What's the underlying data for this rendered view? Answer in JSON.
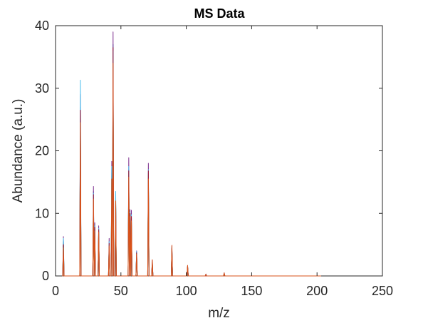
{
  "chart_data": {
    "type": "line",
    "title": "MS Data",
    "xlabel": "m/z",
    "ylabel": "Abundance (a.u.)",
    "xlim": [
      0,
      250
    ],
    "ylim": [
      0,
      40
    ],
    "xticks": [
      0,
      50,
      100,
      150,
      200,
      250
    ],
    "yticks": [
      0,
      10,
      20,
      30,
      40
    ],
    "grid": false,
    "x_extent": [
      5,
      203
    ],
    "series": [
      {
        "color": "#0072BD",
        "peaks": [
          [
            6,
            5.8
          ],
          [
            19,
            27
          ],
          [
            29,
            13.5
          ],
          [
            30,
            8
          ],
          [
            33,
            7.5
          ],
          [
            41,
            5
          ],
          [
            43,
            17
          ],
          [
            44,
            37
          ],
          [
            46,
            12
          ],
          [
            56,
            17
          ],
          [
            57,
            10
          ],
          [
            58,
            9
          ],
          [
            62,
            3.8
          ],
          [
            71,
            16.5
          ],
          [
            74,
            2.2
          ],
          [
            89,
            4.5
          ],
          [
            101,
            1.5
          ],
          [
            115,
            0.3
          ],
          [
            129,
            0.4
          ]
        ]
      },
      {
        "color": "#EDB120",
        "peaks": [
          [
            6,
            5.2
          ],
          [
            19,
            26
          ],
          [
            29,
            12.5
          ],
          [
            30,
            7
          ],
          [
            33,
            7
          ],
          [
            41,
            4.5
          ],
          [
            43,
            16.5
          ],
          [
            44,
            35
          ],
          [
            46,
            13
          ],
          [
            56,
            16
          ],
          [
            57,
            9.5
          ],
          [
            58,
            9
          ],
          [
            62,
            3.5
          ],
          [
            71,
            16
          ],
          [
            74,
            2
          ],
          [
            89,
            4
          ],
          [
            101,
            1.4
          ],
          [
            129,
            0.3
          ]
        ]
      },
      {
        "color": "#7E2F8E",
        "peaks": [
          [
            6,
            6.3
          ],
          [
            19,
            29
          ],
          [
            29,
            14.3
          ],
          [
            30,
            8.5
          ],
          [
            33,
            8
          ],
          [
            41,
            6
          ],
          [
            43,
            18.3
          ],
          [
            44,
            39
          ],
          [
            46,
            12
          ],
          [
            56,
            18.9
          ],
          [
            57,
            10.6
          ],
          [
            58,
            10.5
          ],
          [
            62,
            4
          ],
          [
            71,
            18
          ],
          [
            74,
            2.5
          ],
          [
            89,
            4.8
          ],
          [
            101,
            1.6
          ],
          [
            115,
            0.3
          ],
          [
            129,
            0.5
          ]
        ]
      },
      {
        "color": "#77AC30",
        "peaks": [
          [
            6,
            5.5
          ],
          [
            19,
            25
          ],
          [
            29,
            12
          ],
          [
            30,
            7.5
          ],
          [
            33,
            7.2
          ],
          [
            41,
            5
          ],
          [
            43,
            16
          ],
          [
            44,
            34.5
          ],
          [
            46,
            12.5
          ],
          [
            56,
            16.5
          ],
          [
            57,
            9.8
          ],
          [
            58,
            9.2
          ],
          [
            62,
            3.6
          ],
          [
            71,
            16.2
          ],
          [
            74,
            2.1
          ],
          [
            89,
            4.2
          ],
          [
            101,
            1.5
          ],
          [
            129,
            0.4
          ]
        ]
      },
      {
        "color": "#4DBEEE",
        "peaks": [
          [
            6,
            6
          ],
          [
            19,
            31.3
          ],
          [
            29,
            13.2
          ],
          [
            30,
            8
          ],
          [
            33,
            7.6
          ],
          [
            41,
            5.5
          ],
          [
            43,
            17.5
          ],
          [
            44,
            36
          ],
          [
            46,
            13.5
          ],
          [
            56,
            17.5
          ],
          [
            57,
            10.2
          ],
          [
            58,
            9.8
          ],
          [
            62,
            3.9
          ],
          [
            71,
            17
          ],
          [
            74,
            2.3
          ],
          [
            89,
            4.6
          ],
          [
            101,
            1.5
          ],
          [
            115,
            0.2
          ],
          [
            129,
            0.4
          ]
        ]
      },
      {
        "color": "#A2142F",
        "peaks": [
          [
            6,
            5
          ],
          [
            19,
            26.5
          ],
          [
            29,
            13
          ],
          [
            30,
            7.8
          ],
          [
            33,
            7.4
          ],
          [
            41,
            5.2
          ],
          [
            43,
            11
          ],
          [
            44,
            36.5
          ],
          [
            46,
            11.5
          ],
          [
            56,
            16.8
          ],
          [
            57,
            10
          ],
          [
            58,
            9.5
          ],
          [
            62,
            3.7
          ],
          [
            71,
            16.8
          ],
          [
            74,
            2.2
          ],
          [
            89,
            4.4
          ],
          [
            101,
            1.5
          ],
          [
            129,
            0.3
          ]
        ]
      },
      {
        "color": "#D95319",
        "peaks": [
          [
            6,
            4.5
          ],
          [
            19,
            24.5
          ],
          [
            29,
            12.3
          ],
          [
            30,
            7.2
          ],
          [
            33,
            7
          ],
          [
            41,
            4.8
          ],
          [
            43,
            15.5
          ],
          [
            44,
            34
          ],
          [
            46,
            12
          ],
          [
            56,
            15.8
          ],
          [
            57,
            9.5
          ],
          [
            58,
            8.8
          ],
          [
            62,
            3.5
          ],
          [
            71,
            15.5
          ],
          [
            74,
            2.6
          ],
          [
            89,
            4.9
          ],
          [
            101,
            1.7
          ],
          [
            115,
            0.3
          ],
          [
            129,
            0.5
          ]
        ]
      }
    ]
  }
}
